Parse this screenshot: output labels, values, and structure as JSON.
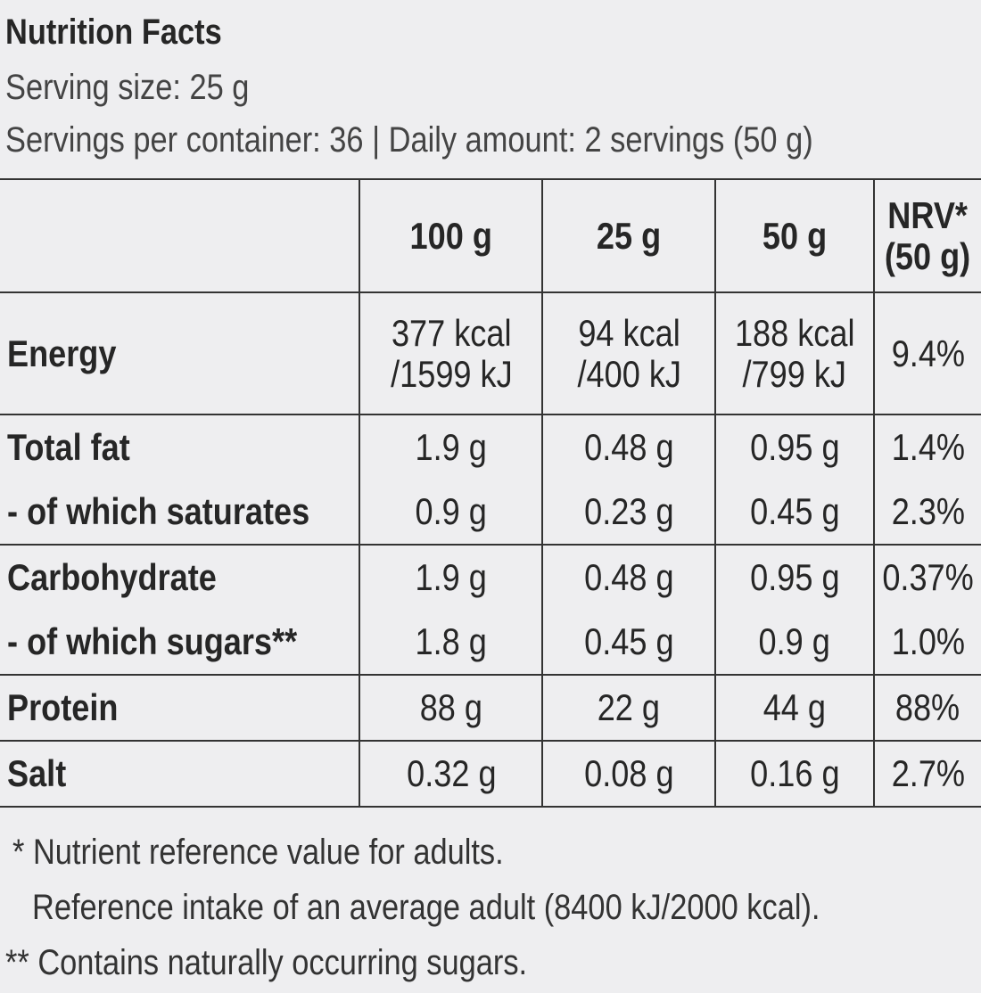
{
  "title": "Nutrition Facts",
  "serving_size": "Serving size: 25 g",
  "servings_line": "Servings per container: 36 | Daily amount: 2 servings (50 g)",
  "headers": [
    "",
    "100 g",
    "25 g",
    "50 g",
    "NRV*",
    "(50 g)"
  ],
  "rows": [
    {
      "label": "Energy",
      "v100": "377 kcal",
      "v100b": "/1599 kJ",
      "v25": "94 kcal",
      "v25b": "/400 kJ",
      "v50": "188 kcal",
      "v50b": "/799 kJ",
      "nrv": "9.4%"
    },
    {
      "label": "Total fat",
      "v100": "1.9 g",
      "v25": "0.48 g",
      "v50": "0.95 g",
      "nrv": "1.4%"
    },
    {
      "label": "- of which saturates",
      "v100": "0.9 g",
      "v25": "0.23 g",
      "v50": "0.45 g",
      "nrv": "2.3%"
    },
    {
      "label": "Carbohydrate",
      "v100": "1.9 g",
      "v25": "0.48 g",
      "v50": "0.95 g",
      "nrv": "0.37%"
    },
    {
      "label": "- of which sugars**",
      "v100": "1.8 g",
      "v25": "0.45 g",
      "v50": "0.9 g",
      "nrv": "1.0%"
    },
    {
      "label": "Protein",
      "v100": "88 g",
      "v25": "22 g",
      "v50": "44 g",
      "nrv": "88%"
    },
    {
      "label": "Salt",
      "v100": "0.32 g",
      "v25": "0.08 g",
      "v50": "0.16 g",
      "nrv": "2.7%"
    }
  ],
  "footnotes": [
    "* Nutrient reference value for adults.",
    "Reference intake of an average adult (8400 kJ/2000 kcal).",
    "** Contains naturally occurring sugars."
  ]
}
